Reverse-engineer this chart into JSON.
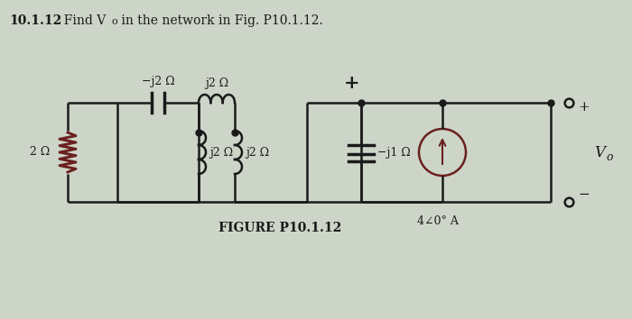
{
  "bg_color": "#cdd5c8",
  "line_color": "#1a1a1a",
  "dark_red": "#6b2020",
  "labels": {
    "two_ohm": "2 Ω",
    "neg_j2": "−j2 Ω",
    "j2_top": "j2 Ω",
    "j2_left": "j2 Ω",
    "j2_right": "j2 Ω",
    "neg_j1": "−j1 Ω",
    "source": "4∠0° A",
    "vo": "V",
    "vo_sub": "o",
    "plus_top": "+",
    "plus_right": "+",
    "minus_right": "−",
    "figure": "FIGURE P10.1.12"
  },
  "title_num": "10.1.12",
  "title_text": "  Find V",
  "title_sub": "o",
  "title_rest": " in the network in Fig. P10.1.12."
}
